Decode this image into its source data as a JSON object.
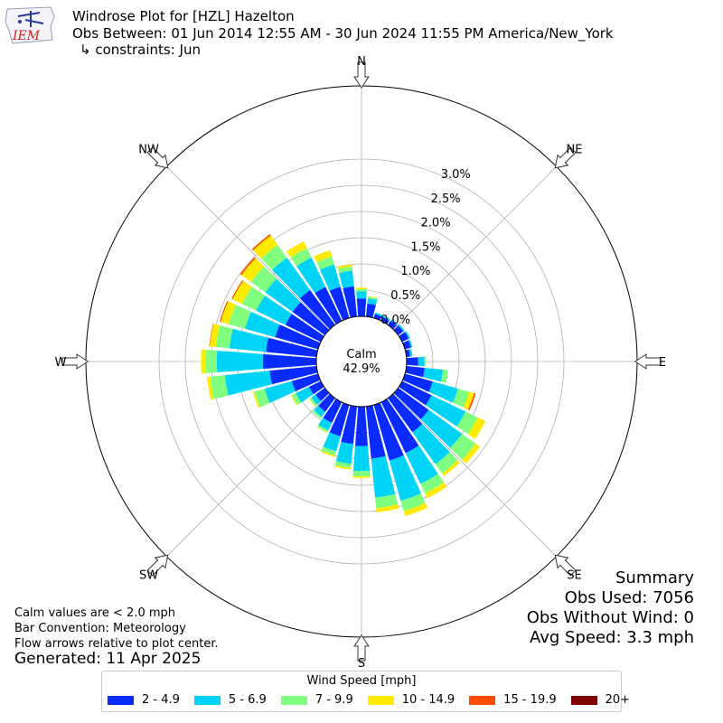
{
  "header": {
    "logo_text": "IEM",
    "title": "Windrose Plot for [HZL] Hazelton",
    "obs_between": "Obs Between: 01 Jun 2014 12:55 AM - 30 Jun 2024 11:55 PM America/New_York",
    "constraints": "↳ constraints: Jun"
  },
  "notes": {
    "calm_def": "Calm values are < 2.0 mph",
    "bar_convention": "Bar Convention: Meteorology",
    "flow_arrows": "Flow arrows relative to plot center.",
    "generated": "Generated: 11 Apr 2025"
  },
  "summary": {
    "title": "Summary",
    "obs_used": "Obs Used: 7056",
    "obs_without_wind": "Obs Without Wind: 0",
    "avg_speed": "Avg Speed: 3.3 mph"
  },
  "colors": {
    "bins": [
      "#0a2bff",
      "#00d4f6",
      "#80ff80",
      "#ffea00",
      "#ff4c00",
      "#7f0000"
    ],
    "grid": "#b0b0b0"
  },
  "chart_data": {
    "type": "windrose",
    "calm_label": "Calm",
    "calm_percent": "42.9%",
    "radial_ticks": [
      "0.0%",
      "0.5%",
      "1.0%",
      "1.5%",
      "2.0%",
      "2.5%",
      "3.0%"
    ],
    "radial_range": [
      0,
      3.0
    ],
    "compass_labels": [
      {
        "dir": 0,
        "label": "N"
      },
      {
        "dir": 45,
        "label": "NE"
      },
      {
        "dir": 90,
        "label": "E"
      },
      {
        "dir": 135,
        "label": "SE"
      },
      {
        "dir": 180,
        "label": "S"
      },
      {
        "dir": 225,
        "label": "SW"
      },
      {
        "dir": 270,
        "label": "W"
      },
      {
        "dir": 315,
        "label": "NW"
      }
    ],
    "legend_title": "Wind Speed [mph]",
    "speed_bins": [
      "2 - 4.9",
      "5 - 6.9",
      "7 - 9.9",
      "10 - 14.9",
      "15 - 19.9",
      "20+"
    ],
    "directions": [
      0,
      10,
      20,
      30,
      40,
      50,
      60,
      70,
      80,
      90,
      100,
      110,
      120,
      130,
      140,
      150,
      160,
      170,
      180,
      190,
      200,
      210,
      220,
      230,
      240,
      250,
      260,
      270,
      280,
      290,
      300,
      310,
      320,
      330,
      340,
      350
    ],
    "series": [
      {
        "name": "2 - 4.9",
        "values": [
          0.34,
          0.25,
          0.08,
          0.08,
          0.1,
          0.12,
          0.14,
          0.12,
          0.07,
          0.22,
          0.35,
          0.55,
          0.62,
          0.72,
          0.8,
          1.08,
          1.1,
          1.0,
          0.75,
          0.72,
          0.62,
          0.44,
          0.32,
          0.22,
          0.25,
          0.52,
          0.9,
          1.02,
          0.97,
          0.85,
          0.75,
          0.76,
          0.82,
          0.72,
          0.62,
          0.58
        ]
      },
      {
        "name": "5 - 6.9",
        "values": [
          0.14,
          0.1,
          0.03,
          0.03,
          0.03,
          0.03,
          0.03,
          0.03,
          0.04,
          0.12,
          0.35,
          0.5,
          0.72,
          0.78,
          0.75,
          0.65,
          0.8,
          0.75,
          0.48,
          0.38,
          0.3,
          0.16,
          0.12,
          0.1,
          0.28,
          0.54,
          0.86,
          0.88,
          0.7,
          0.6,
          0.62,
          0.64,
          0.76,
          0.62,
          0.44,
          0.3
        ]
      },
      {
        "name": "7 - 9.9",
        "values": [
          0.04,
          0.03,
          0,
          0,
          0,
          0,
          0,
          0,
          0.01,
          0.02,
          0.1,
          0.22,
          0.26,
          0.32,
          0.22,
          0.2,
          0.2,
          0.2,
          0.1,
          0.08,
          0.08,
          0.04,
          0.04,
          0.04,
          0.08,
          0.2,
          0.28,
          0.22,
          0.26,
          0.32,
          0.3,
          0.34,
          0.3,
          0.2,
          0.16,
          0.08
        ]
      },
      {
        "name": "10 - 14.9",
        "values": [
          0.03,
          0.01,
          0,
          0,
          0,
          0,
          0,
          0,
          0,
          0,
          0,
          0.1,
          0.16,
          0.1,
          0.06,
          0.1,
          0.1,
          0.08,
          0.03,
          0.03,
          0.03,
          0.01,
          0,
          0.01,
          0.02,
          0.03,
          0.06,
          0.08,
          0.12,
          0.16,
          0.2,
          0.22,
          0.22,
          0.14,
          0.12,
          0.04
        ]
      },
      {
        "name": "15 - 19.9",
        "values": [
          0,
          0,
          0,
          0,
          0,
          0,
          0,
          0,
          0,
          0,
          0,
          0.03,
          0,
          0,
          0,
          0,
          0,
          0,
          0,
          0,
          0,
          0,
          0,
          0,
          0,
          0,
          0,
          0,
          0.01,
          0.02,
          0.02,
          0.03,
          0.03,
          0,
          0,
          0
        ]
      },
      {
        "name": "20+",
        "values": [
          0,
          0,
          0,
          0,
          0,
          0,
          0,
          0,
          0,
          0,
          0,
          0,
          0,
          0,
          0,
          0,
          0,
          0,
          0,
          0,
          0,
          0,
          0,
          0,
          0,
          0,
          0,
          0,
          0,
          0,
          0,
          0,
          0,
          0,
          0,
          0
        ]
      }
    ]
  }
}
